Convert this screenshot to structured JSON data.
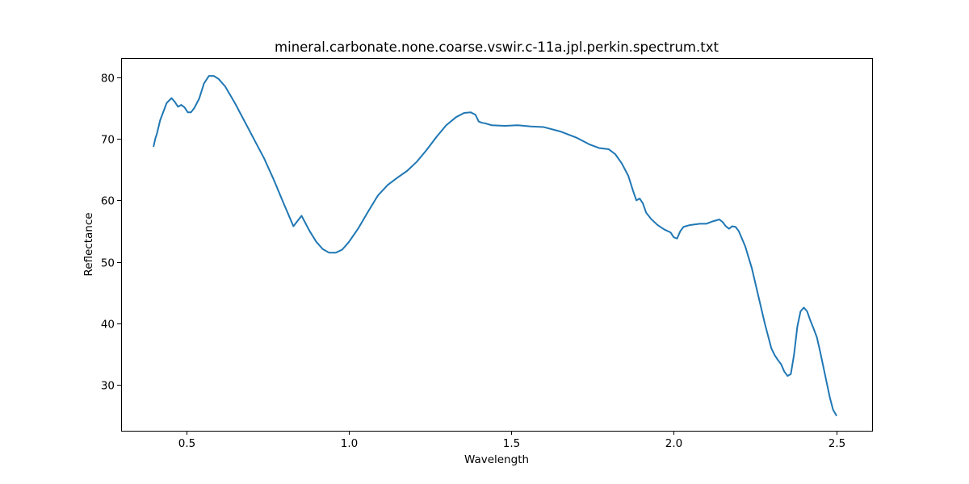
{
  "chart_data": {
    "type": "line",
    "title": "mineral.carbonate.none.coarse.vswir.c-11a.jpl.perkin.spectrum.txt",
    "xlabel": "Wavelength",
    "ylabel": "Reflectance",
    "xlim": [
      0.3,
      2.61
    ],
    "ylim": [
      22.6,
      83.1
    ],
    "xticks": [
      0.5,
      1.0,
      1.5,
      2.0,
      2.5
    ],
    "xtick_labels": [
      "0.5",
      "1.0",
      "1.5",
      "2.0",
      "2.5"
    ],
    "yticks": [
      30,
      40,
      50,
      60,
      70,
      80
    ],
    "ytick_labels": [
      "30",
      "40",
      "50",
      "60",
      "70",
      "80"
    ],
    "grid": false,
    "series": [
      {
        "color": "#1f77b4",
        "x": [
          0.4,
          0.405,
          0.41,
          0.42,
          0.44,
          0.455,
          0.465,
          0.475,
          0.485,
          0.495,
          0.505,
          0.515,
          0.525,
          0.54,
          0.555,
          0.57,
          0.585,
          0.6,
          0.62,
          0.65,
          0.68,
          0.71,
          0.74,
          0.77,
          0.8,
          0.83,
          0.855,
          0.865,
          0.88,
          0.9,
          0.92,
          0.94,
          0.96,
          0.98,
          1.0,
          1.03,
          1.06,
          1.09,
          1.12,
          1.15,
          1.18,
          1.21,
          1.24,
          1.27,
          1.3,
          1.33,
          1.355,
          1.375,
          1.39,
          1.4,
          1.41,
          1.42,
          1.44,
          1.48,
          1.52,
          1.56,
          1.6,
          1.65,
          1.7,
          1.74,
          1.77,
          1.8,
          1.82,
          1.84,
          1.86,
          1.875,
          1.885,
          1.895,
          1.905,
          1.915,
          1.93,
          1.95,
          1.97,
          1.99,
          2.0,
          2.01,
          2.02,
          2.03,
          2.05,
          2.08,
          2.1,
          2.12,
          2.14,
          2.15,
          2.16,
          2.17,
          2.18,
          2.19,
          2.2,
          2.22,
          2.24,
          2.26,
          2.28,
          2.3,
          2.31,
          2.32,
          2.33,
          2.34,
          2.35,
          2.36,
          2.37,
          2.38,
          2.39,
          2.4,
          2.41,
          2.42,
          2.43,
          2.44,
          2.45,
          2.46,
          2.47,
          2.48,
          2.49,
          2.5
        ],
        "y": [
          68.8,
          70.0,
          70.8,
          73.0,
          75.8,
          76.6,
          76.0,
          75.2,
          75.5,
          75.1,
          74.3,
          74.3,
          75.0,
          76.5,
          79.0,
          80.2,
          80.2,
          79.7,
          78.5,
          75.8,
          72.8,
          69.8,
          66.8,
          63.3,
          59.5,
          55.8,
          57.5,
          56.5,
          55.0,
          53.3,
          52.1,
          51.5,
          51.5,
          52.0,
          53.2,
          55.5,
          58.2,
          60.8,
          62.5,
          63.7,
          64.8,
          66.3,
          68.2,
          70.3,
          72.2,
          73.5,
          74.2,
          74.3,
          73.9,
          72.8,
          72.6,
          72.5,
          72.2,
          72.1,
          72.2,
          72.0,
          71.9,
          71.2,
          70.2,
          69.1,
          68.5,
          68.3,
          67.5,
          66.0,
          64.0,
          61.5,
          60.0,
          60.3,
          59.5,
          58.0,
          57.0,
          56.0,
          55.3,
          54.8,
          54.0,
          53.8,
          55.0,
          55.7,
          56.0,
          56.2,
          56.2,
          56.6,
          56.9,
          56.5,
          55.8,
          55.4,
          55.8,
          55.7,
          55.0,
          52.5,
          49.0,
          44.5,
          40.0,
          36.0,
          34.9,
          34.1,
          33.4,
          32.2,
          31.5,
          31.8,
          35.0,
          39.5,
          42.0,
          42.6,
          42.0,
          40.5,
          39.2,
          37.8,
          35.5,
          33.0,
          30.5,
          28.0,
          26.0,
          25.1
        ]
      }
    ]
  }
}
